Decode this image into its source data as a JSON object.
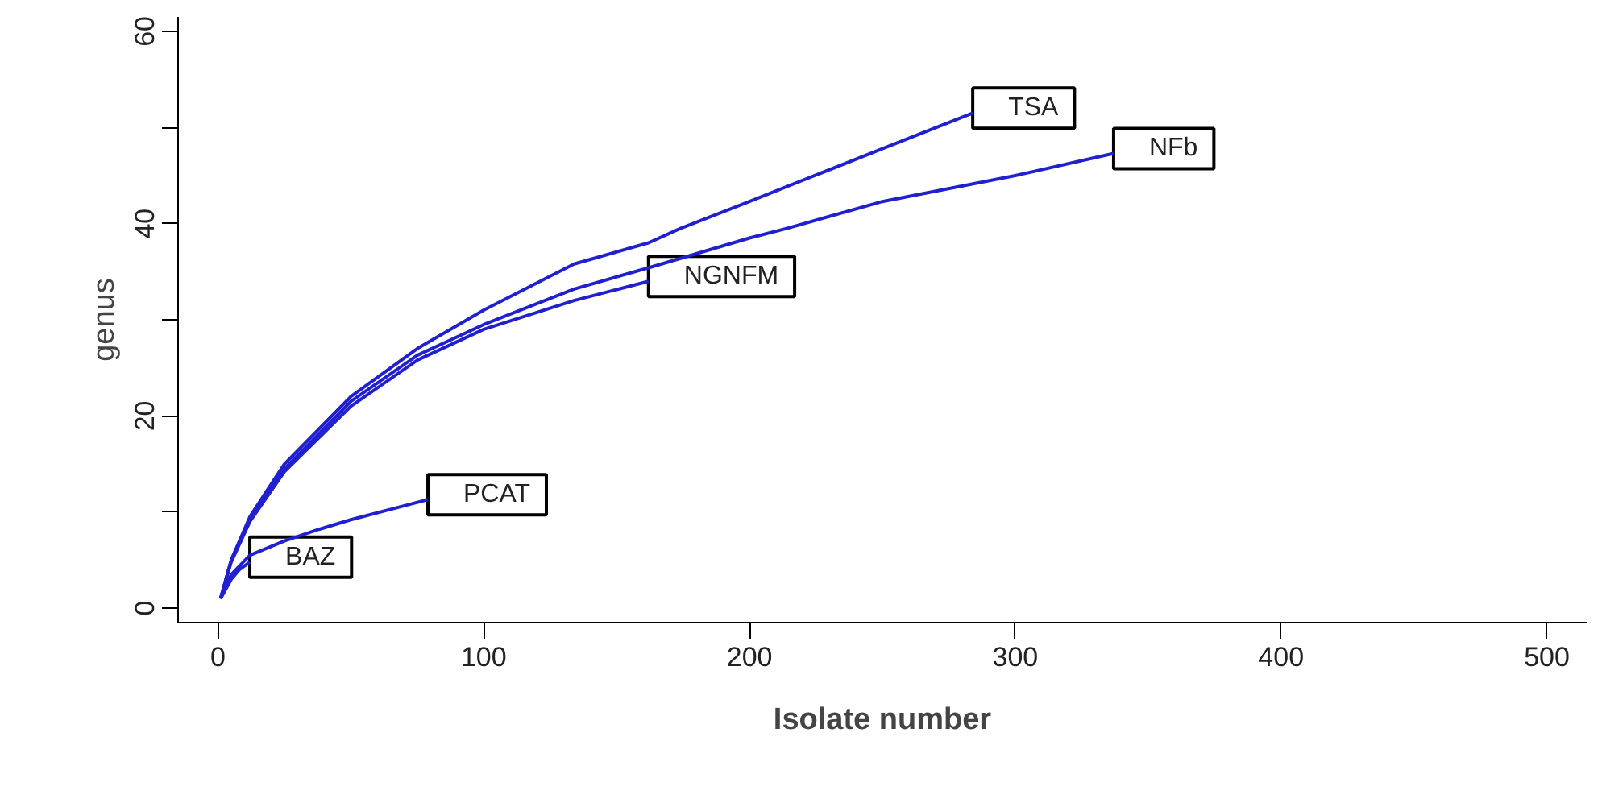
{
  "chart_data": {
    "type": "line",
    "xlabel": "Isolate number",
    "ylabel": "genus",
    "xlim": [
      -15,
      515
    ],
    "ylim": [
      -1.5,
      61.5
    ],
    "xticks": [
      0,
      100,
      200,
      300,
      400,
      500
    ],
    "yticks": [
      0,
      {
        "value": 10,
        "label": null
      },
      20,
      {
        "value": 30,
        "label": null
      },
      40,
      {
        "value": 50,
        "label": null
      },
      60
    ],
    "grid": false,
    "marker": "none",
    "line_style": "solid",
    "series": [
      {
        "name": "TSA",
        "color": "#2020d0",
        "x": [
          1,
          5,
          12,
          25,
          50,
          75,
          100,
          134,
          162,
          174,
          200,
          250,
          284
        ],
        "values": [
          1,
          5,
          9.5,
          15,
          22,
          27,
          31,
          35.8,
          38,
          39.5,
          42.3,
          47.8,
          51.5
        ]
      },
      {
        "name": "NFb",
        "color": "#2020d0",
        "x": [
          1,
          5,
          12,
          25,
          50,
          75,
          100,
          134,
          162,
          200,
          214,
          250,
          300,
          337
        ],
        "values": [
          1,
          5,
          9.3,
          14.5,
          21.5,
          26.3,
          29.5,
          33.2,
          35.4,
          38.5,
          39.5,
          42.3,
          45,
          47.3
        ]
      },
      {
        "name": "NGNFM",
        "color": "#2020d0",
        "x": [
          1,
          5,
          12,
          25,
          50,
          75,
          100,
          134,
          162
        ],
        "values": [
          1,
          4.8,
          9,
          14.2,
          21,
          25.8,
          29,
          32,
          34
        ]
      },
      {
        "name": "PCAT",
        "color": "#2020d0",
        "x": [
          1,
          5,
          12,
          25,
          38,
          50,
          79
        ],
        "values": [
          1,
          3.5,
          5.5,
          7,
          8.2,
          9.2,
          11.3
        ]
      },
      {
        "name": "BAZ",
        "color": "#2020d0",
        "x": [
          1,
          5,
          8,
          12
        ],
        "values": [
          1,
          3,
          4,
          4.8
        ]
      }
    ]
  }
}
